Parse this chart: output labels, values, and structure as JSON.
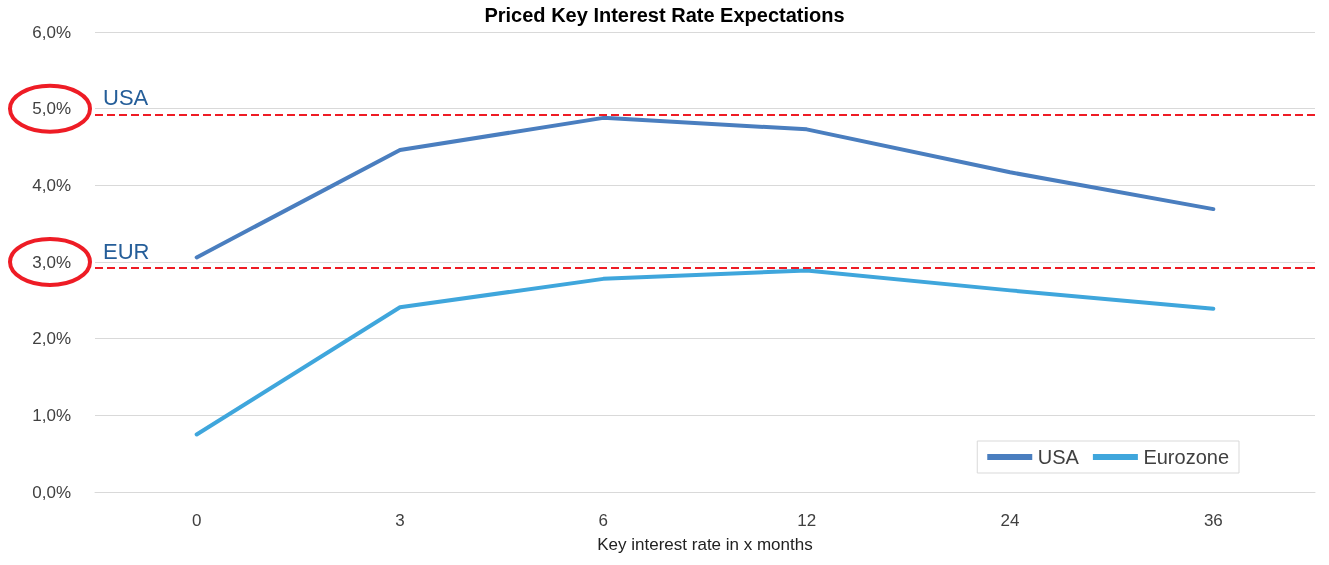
{
  "chart_data": {
    "type": "line",
    "title": "Priced Key Interest Rate Expectations",
    "xlabel": "Key interest rate in x months",
    "categories": [
      "0",
      "3",
      "6",
      "12",
      "24",
      "36"
    ],
    "series": [
      {
        "name": "USA",
        "color": "#4a7ebf",
        "values": [
          3.06,
          4.46,
          4.88,
          4.73,
          4.17,
          3.69
        ]
      },
      {
        "name": "Eurozone",
        "color": "#3fa6dc",
        "values": [
          0.75,
          2.41,
          2.78,
          2.89,
          2.63,
          2.39
        ]
      }
    ],
    "ylim": [
      0,
      6
    ],
    "yticks": [
      {
        "value": 0,
        "label": "0,0%"
      },
      {
        "value": 1,
        "label": "1,0%"
      },
      {
        "value": 2,
        "label": "2,0%"
      },
      {
        "value": 3,
        "label": "3,0%"
      },
      {
        "value": 4,
        "label": "4,0%"
      },
      {
        "value": 5,
        "label": "5,0%"
      },
      {
        "value": 6,
        "label": "6,0%"
      }
    ],
    "ref_lines": [
      {
        "axis": "y",
        "value": 4.92,
        "label": "USA",
        "color": "#ee1c25",
        "line_style": "dashed"
      },
      {
        "axis": "y",
        "value": 2.92,
        "label": "EUR",
        "color": "#ee1c25",
        "line_style": "dashed"
      }
    ],
    "grid": "y",
    "legend": "bottom right",
    "marker": "none",
    "line_style": "solid"
  }
}
